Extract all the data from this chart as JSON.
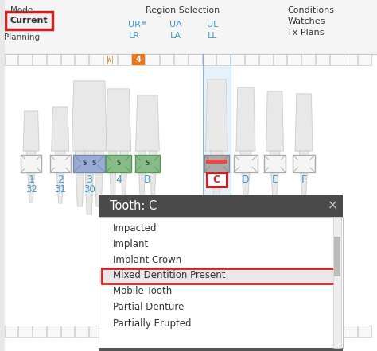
{
  "bg_color": "#e8e8e8",
  "toolbar_bg": "#f5f5f5",
  "chart_bg": "#ffffff",
  "mode_label": "Mode",
  "current_label": "Current",
  "planning_label": "Planning",
  "region_label": "Region Selection",
  "ur_label": "UR",
  "lr_label": "LR",
  "ua_label": "UA",
  "la_label": "LA",
  "ul_label": "UL",
  "ll_label": "LL",
  "conditions_labels": [
    "Conditions",
    "Watches",
    "Tx Plans"
  ],
  "popup_title": "Tooth: C",
  "popup_items": [
    "Impacted",
    "Implant",
    "Implant Crown",
    "Mixed Dentition Present",
    "Mobile Tooth",
    "Partial Denture",
    "Partially Erupted"
  ],
  "highlighted_item": "Mixed Dentition Present",
  "red_color": "#cc2222",
  "blue_color": "#4499cc",
  "orange_color": "#e87820",
  "green_color": "#4aaa6a",
  "blue_bg": "#d0e4f4",
  "popup_header_bg": "#4a4a4a",
  "highlight_row_bg": "#e8e8e8",
  "tooth_white": "#f0f0f0",
  "tooth_gray": "#b8b8b8",
  "box_blue": "#8899cc",
  "box_green": "#55aa77"
}
